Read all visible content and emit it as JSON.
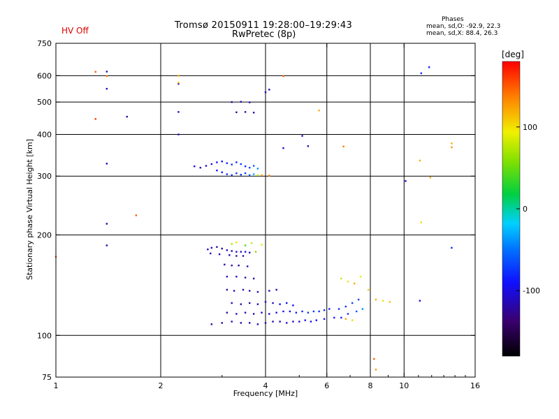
{
  "status_label": "HV Off",
  "title_line1": "Tromsø 20150911 19:28:00–19:29:43",
  "title_line2": "RwPretec (8p)",
  "stats": {
    "title": "Phases",
    "o_line": "mean, sd,O: -92.9, 22.3",
    "x_line": "mean, sd,X:  88.4, 26.3"
  },
  "colors": {
    "status_label": "#dd0000"
  },
  "chart_data": {
    "type": "scatter",
    "xlabel": "Frequency [MHz]",
    "ylabel": "Stationary phase Virtual Height [km]",
    "x_scale": "log",
    "y_scale": "log",
    "xlim": [
      1,
      16
    ],
    "ylim": [
      75,
      750
    ],
    "x_ticks": [
      1,
      2,
      4,
      6,
      8,
      10,
      16
    ],
    "x_tick_labels": [
      "1",
      "2",
      "4",
      "6",
      "8",
      "10",
      "16"
    ],
    "y_ticks": [
      75,
      100,
      200,
      300,
      400,
      500,
      600,
      750
    ],
    "y_tick_labels": [
      "75",
      "100",
      "200",
      "300",
      "400",
      "500",
      "600",
      "750"
    ],
    "grid_x": [
      2,
      4,
      6,
      8,
      10
    ],
    "grid_y": [
      100,
      200,
      300,
      400,
      500,
      600
    ],
    "colorbar": {
      "label": "[deg]",
      "range": [
        -180,
        180
      ],
      "ticks": [
        100,
        0,
        -100
      ],
      "tick_labels": [
        "100",
        "0",
        "-100"
      ]
    },
    "series": [
      {
        "points": [
          [
            2.73,
            181,
            -110
          ],
          [
            2.8,
            183,
            -115
          ],
          [
            2.9,
            184,
            -120
          ],
          [
            3.0,
            182,
            -118
          ],
          [
            3.1,
            180,
            -112
          ],
          [
            3.2,
            179,
            -116
          ],
          [
            3.3,
            178,
            -110
          ],
          [
            3.4,
            178,
            -105
          ],
          [
            3.5,
            178,
            -100
          ],
          [
            3.6,
            177,
            -108
          ],
          [
            2.78,
            176,
            -112
          ],
          [
            2.95,
            175,
            -115
          ],
          [
            3.15,
            174,
            -118
          ],
          [
            3.3,
            173,
            -120
          ],
          [
            3.45,
            173,
            -110
          ],
          [
            3.05,
            163,
            -118
          ],
          [
            3.2,
            162,
            -120
          ],
          [
            3.35,
            162,
            -122
          ],
          [
            3.55,
            161,
            -115
          ],
          [
            3.1,
            150,
            -110
          ],
          [
            3.3,
            150,
            -112
          ],
          [
            3.5,
            149,
            -118
          ],
          [
            3.7,
            148,
            -120
          ],
          [
            3.1,
            137,
            -118
          ],
          [
            3.25,
            136,
            -112
          ],
          [
            3.45,
            137,
            -115
          ],
          [
            3.6,
            136,
            -105
          ],
          [
            3.8,
            135,
            -110
          ],
          [
            4.1,
            136,
            -115
          ],
          [
            4.3,
            137,
            -112
          ],
          [
            3.2,
            125,
            -112
          ],
          [
            3.4,
            124,
            -118
          ],
          [
            3.6,
            125,
            -115
          ],
          [
            3.8,
            124,
            -120
          ],
          [
            4.0,
            126,
            -108
          ],
          [
            4.2,
            125,
            -110
          ],
          [
            4.4,
            124,
            -100
          ],
          [
            4.6,
            125,
            -95
          ],
          [
            4.8,
            123,
            -90
          ],
          [
            3.1,
            117,
            -120
          ],
          [
            3.3,
            116,
            -115
          ],
          [
            3.5,
            117,
            -112
          ],
          [
            3.7,
            116,
            -118
          ],
          [
            3.9,
            117,
            -110
          ],
          [
            4.1,
            116,
            -105
          ],
          [
            4.3,
            117,
            -100
          ],
          [
            4.5,
            118,
            -95
          ],
          [
            4.7,
            118,
            -90
          ],
          [
            4.9,
            117,
            -85
          ],
          [
            5.1,
            118,
            -80
          ],
          [
            5.3,
            117,
            -78
          ],
          [
            5.5,
            118,
            -75
          ],
          [
            5.7,
            118,
            -78
          ],
          [
            5.9,
            119,
            -82
          ],
          [
            6.1,
            120,
            -85
          ],
          [
            2.8,
            108,
            -120
          ],
          [
            3.0,
            109,
            -118
          ],
          [
            3.2,
            110,
            -115
          ],
          [
            3.4,
            109,
            -120
          ],
          [
            3.6,
            109,
            -118
          ],
          [
            3.8,
            108,
            -112
          ],
          [
            4.0,
            109,
            -110
          ],
          [
            4.2,
            110,
            -115
          ],
          [
            4.4,
            110,
            -118
          ],
          [
            4.6,
            109,
            -112
          ],
          [
            4.8,
            110,
            -110
          ],
          [
            5.0,
            110,
            -105
          ],
          [
            5.2,
            111,
            -100
          ],
          [
            5.4,
            110,
            -95
          ],
          [
            5.6,
            111,
            -90
          ],
          [
            5.9,
            112,
            -88
          ],
          [
            6.3,
            113,
            -85
          ],
          [
            6.5,
            120,
            -80
          ],
          [
            6.8,
            122,
            -75
          ],
          [
            7.1,
            125,
            -70
          ],
          [
            7.4,
            128,
            -72
          ],
          [
            6.6,
            113,
            -85
          ],
          [
            6.9,
            116,
            -80
          ],
          [
            7.3,
            118,
            -60
          ],
          [
            7.6,
            120,
            -40
          ],
          [
            2.5,
            321,
            -112
          ],
          [
            2.6,
            318,
            -115
          ],
          [
            2.7,
            322,
            -110
          ],
          [
            2.8,
            326,
            -100
          ],
          [
            2.9,
            330,
            -95
          ],
          [
            3.0,
            332,
            -90
          ],
          [
            3.1,
            328,
            -85
          ],
          [
            3.2,
            325,
            -80
          ],
          [
            3.3,
            330,
            -78
          ],
          [
            3.4,
            326,
            -75
          ],
          [
            3.5,
            321,
            -82
          ],
          [
            3.6,
            318,
            -70
          ],
          [
            3.7,
            322,
            -60
          ],
          [
            3.8,
            316,
            -40
          ],
          [
            2.9,
            312,
            -90
          ],
          [
            3.0,
            308,
            -85
          ],
          [
            3.1,
            304,
            -80
          ],
          [
            3.2,
            302,
            -78
          ],
          [
            3.3,
            306,
            -75
          ],
          [
            3.4,
            303,
            -72
          ],
          [
            3.5,
            306,
            -68
          ],
          [
            3.6,
            302,
            -60
          ],
          [
            3.7,
            304,
            -30
          ],
          [
            3.8,
            302,
            80
          ],
          [
            3.9,
            302,
            120
          ],
          [
            4.1,
            301,
            140
          ],
          [
            3.2,
            500,
            -112
          ],
          [
            3.4,
            501,
            -115
          ],
          [
            3.6,
            499,
            -110
          ],
          [
            3.3,
            466,
            -118
          ],
          [
            3.5,
            467,
            -120
          ],
          [
            3.7,
            465,
            -115
          ],
          [
            3.65,
            189,
            80
          ],
          [
            3.9,
            187,
            90
          ],
          [
            3.75,
            178,
            60
          ],
          [
            3.5,
            186,
            40
          ],
          [
            3.2,
            188,
            70
          ],
          [
            3.3,
            190,
            100
          ],
          [
            6.6,
            148,
            80
          ],
          [
            6.9,
            145,
            100
          ],
          [
            7.2,
            143,
            120
          ],
          [
            7.5,
            150,
            90
          ],
          [
            7.9,
            137,
            110
          ],
          [
            8.3,
            128,
            120
          ],
          [
            8.7,
            127,
            100
          ],
          [
            9.1,
            126,
            110
          ],
          [
            6.8,
            112,
            120
          ],
          [
            7.1,
            111,
            100
          ],
          [
            1.4,
            617,
            -112
          ],
          [
            1.4,
            548,
            -110
          ],
          [
            1.6,
            452,
            -118
          ],
          [
            1.4,
            327,
            -115
          ],
          [
            1.4,
            216,
            -120
          ],
          [
            1.4,
            186,
            -118
          ],
          [
            2.25,
            567,
            -115
          ],
          [
            2.25,
            467,
            -112
          ],
          [
            2.25,
            400,
            -110
          ],
          [
            4.0,
            535,
            -115
          ],
          [
            4.1,
            545,
            -118
          ],
          [
            4.5,
            364,
            -112
          ],
          [
            5.1,
            396,
            -110
          ],
          [
            5.3,
            369,
            -112
          ],
          [
            11.2,
            610,
            -80
          ],
          [
            11.8,
            636,
            -85
          ],
          [
            13.7,
            183,
            -80
          ],
          [
            11.1,
            127,
            -100
          ],
          [
            10.1,
            290,
            -110
          ],
          [
            1.4,
            598,
            140
          ],
          [
            1.3,
            616,
            150
          ],
          [
            1.3,
            445,
            160
          ],
          [
            1.7,
            229,
            150
          ],
          [
            1.0,
            172,
            150
          ],
          [
            2.25,
            600,
            120
          ],
          [
            2.25,
            572,
            110
          ],
          [
            4.5,
            598,
            150
          ],
          [
            5.7,
            472,
            120
          ],
          [
            6.7,
            368,
            140
          ],
          [
            13.7,
            376,
            120
          ],
          [
            13.7,
            366,
            130
          ],
          [
            11.1,
            334,
            120
          ],
          [
            11.9,
            297,
            120
          ],
          [
            11.2,
            218,
            100
          ],
          [
            8.2,
            85,
            150
          ],
          [
            8.3,
            79,
            130
          ]
        ]
      }
    ]
  }
}
